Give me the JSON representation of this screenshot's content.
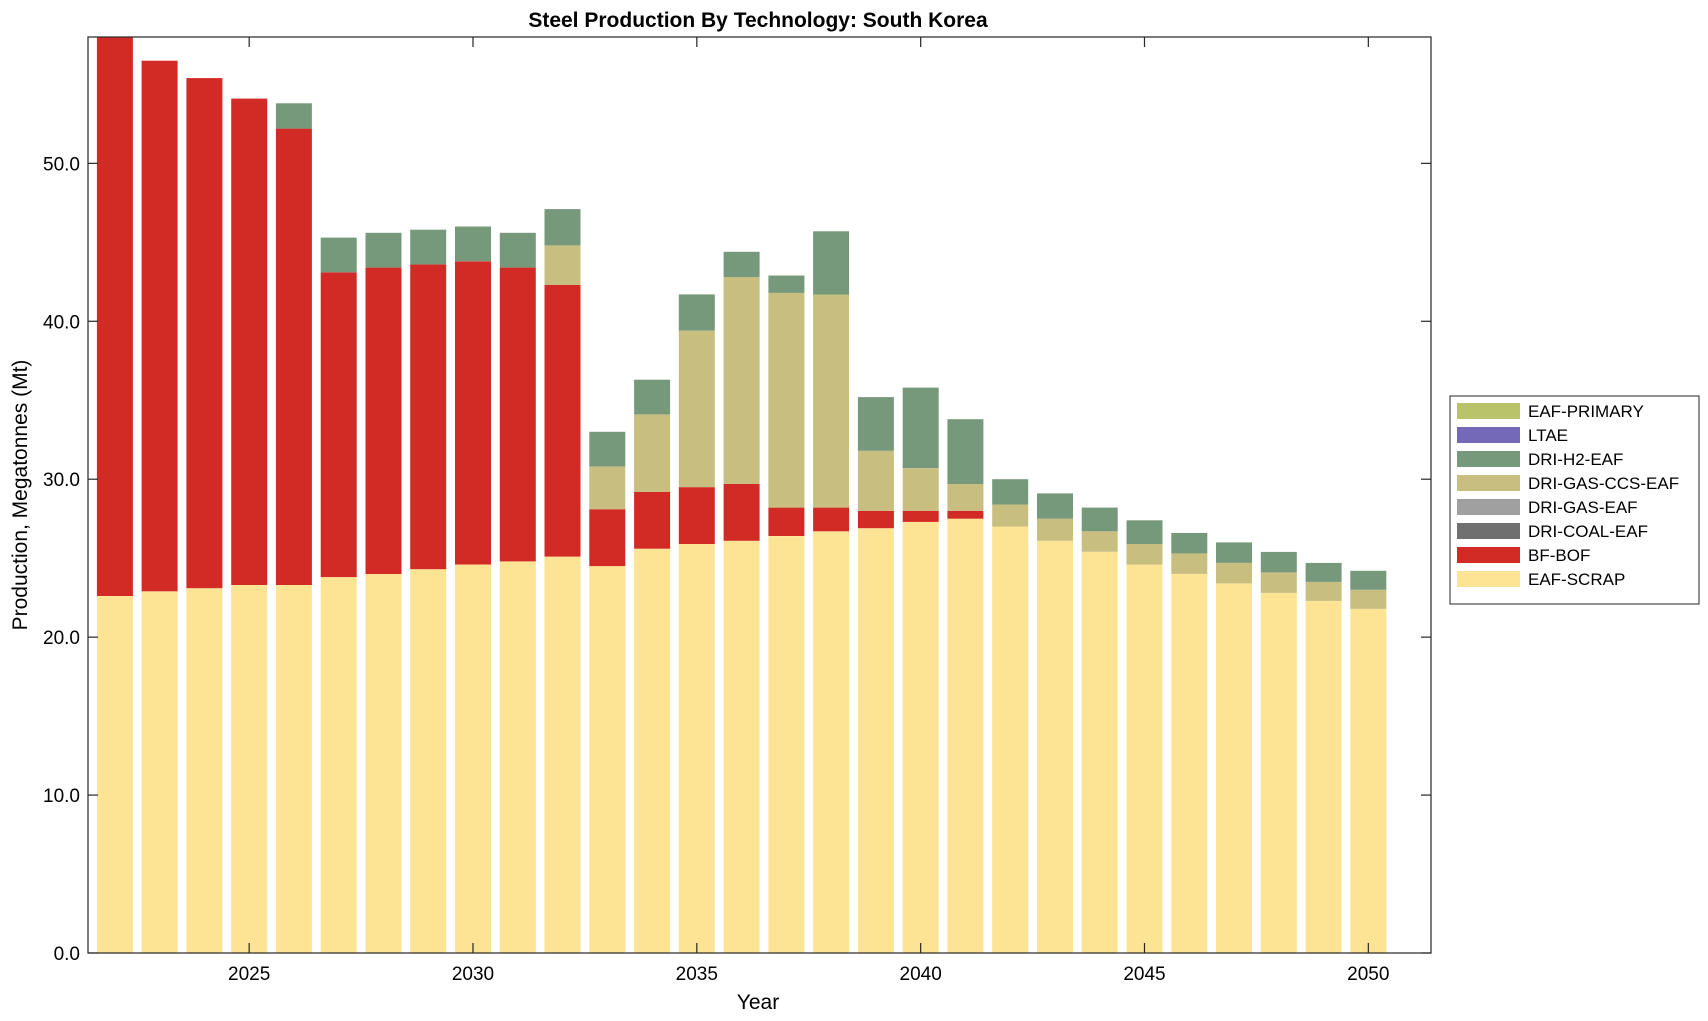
{
  "chart_data": {
    "type": "bar",
    "stacked": true,
    "title": "Steel Production By Technology: South Korea",
    "xlabel": "Year",
    "ylabel": "Production, Megatonnes (Mt)",
    "xlim": [
      2021.4,
      2051.4
    ],
    "ylim": [
      0,
      58
    ],
    "xticks": [
      2025,
      2030,
      2035,
      2040,
      2045,
      2050
    ],
    "xtick_labels": [
      "2025",
      "2030",
      "2035",
      "2040",
      "2045",
      "2050"
    ],
    "yticks": [
      0,
      10,
      20,
      30,
      40,
      50
    ],
    "ytick_labels": [
      "0.0",
      "10.0",
      "20.0",
      "30.0",
      "40.0",
      "50.0"
    ],
    "grid": false,
    "legend_position": "right",
    "x": [
      2022,
      2023,
      2024,
      2025,
      2026,
      2027,
      2028,
      2029,
      2030,
      2031,
      2032,
      2033,
      2034,
      2035,
      2036,
      2037,
      2038,
      2039,
      2040,
      2041,
      2042,
      2043,
      2044,
      2045,
      2046,
      2047,
      2048,
      2049,
      2050
    ],
    "series": [
      {
        "name": "EAF-SCRAP",
        "color": "#fde394",
        "values": [
          22.6,
          22.9,
          23.1,
          23.3,
          23.3,
          23.8,
          24.0,
          24.3,
          24.6,
          24.8,
          25.1,
          24.5,
          25.6,
          25.9,
          26.1,
          26.4,
          26.7,
          26.9,
          27.3,
          27.5,
          27.0,
          26.1,
          25.4,
          24.6,
          24.0,
          23.4,
          22.8,
          22.3,
          21.8
        ]
      },
      {
        "name": "BF-BOF",
        "color": "#d22b26",
        "values": [
          36.1,
          33.6,
          32.3,
          30.8,
          28.9,
          19.3,
          19.4,
          19.3,
          19.2,
          18.6,
          17.2,
          3.6,
          3.6,
          3.6,
          3.6,
          1.8,
          1.5,
          1.1,
          0.7,
          0.5,
          0,
          0,
          0,
          0,
          0,
          0,
          0,
          0,
          0
        ]
      },
      {
        "name": "DRI-COAL-EAF",
        "color": "#707070",
        "values": [
          0,
          0,
          0,
          0,
          0,
          0,
          0,
          0,
          0,
          0,
          0,
          0,
          0,
          0,
          0,
          0,
          0,
          0,
          0,
          0,
          0,
          0,
          0,
          0,
          0,
          0,
          0,
          0,
          0
        ]
      },
      {
        "name": "DRI-GAS-EAF",
        "color": "#a0a0a0",
        "values": [
          0,
          0,
          0,
          0,
          0,
          0,
          0,
          0,
          0,
          0,
          0,
          0,
          0,
          0,
          0,
          0,
          0,
          0,
          0,
          0,
          0,
          0,
          0,
          0,
          0,
          0,
          0,
          0,
          0
        ]
      },
      {
        "name": "DRI-GAS-CCS-EAF",
        "color": "#c7be7f",
        "values": [
          0,
          0,
          0,
          0,
          0,
          0,
          0,
          0,
          0,
          0,
          2.5,
          2.7,
          4.9,
          9.9,
          13.1,
          13.6,
          13.5,
          3.8,
          2.7,
          1.7,
          1.4,
          1.4,
          1.3,
          1.3,
          1.3,
          1.3,
          1.3,
          1.2,
          1.2
        ]
      },
      {
        "name": "DRI-H2-EAF",
        "color": "#77997b",
        "values": [
          0,
          0,
          0,
          0,
          1.6,
          2.2,
          2.2,
          2.2,
          2.2,
          2.2,
          2.3,
          2.2,
          2.2,
          2.3,
          1.6,
          1.1,
          4.0,
          3.4,
          5.1,
          4.1,
          1.6,
          1.6,
          1.5,
          1.5,
          1.3,
          1.3,
          1.3,
          1.2,
          1.2
        ]
      },
      {
        "name": "LTAE",
        "color": "#7469b8",
        "values": [
          0,
          0,
          0,
          0,
          0,
          0,
          0,
          0,
          0,
          0,
          0,
          0,
          0,
          0,
          0,
          0,
          0,
          0,
          0,
          0,
          0,
          0,
          0,
          0,
          0,
          0,
          0,
          0,
          0
        ]
      },
      {
        "name": "EAF-PRIMARY",
        "color": "#b9c46a",
        "values": [
          0,
          0,
          0,
          0,
          0,
          0,
          0,
          0,
          0,
          0,
          0,
          0,
          0,
          0,
          0,
          0,
          0,
          0,
          0,
          0,
          0,
          0,
          0,
          0,
          0,
          0,
          0,
          0,
          0
        ]
      }
    ],
    "legend_order": [
      "EAF-PRIMARY",
      "LTAE",
      "DRI-H2-EAF",
      "DRI-GAS-CCS-EAF",
      "DRI-GAS-EAF",
      "DRI-COAL-EAF",
      "BF-BOF",
      "EAF-SCRAP"
    ]
  }
}
